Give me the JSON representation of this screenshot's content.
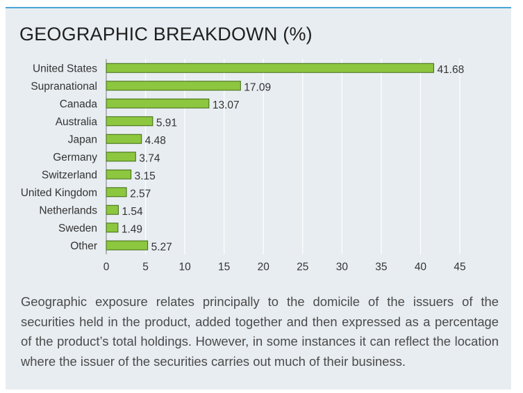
{
  "title": "GEOGRAPHIC BREAKDOWN (%)",
  "description": "Geographic exposure relates principally to the domicile of the issuers of the securities held in the product, added together and then expressed as a percentage of the product’s total holdings. However, in some instances it can reflect the location where the issuer of the securities carries out much of their business.",
  "colors": {
    "bar": "#8dc63f",
    "bar_border": "#3e6b14",
    "panel": "#e8edf1",
    "accent": "#4aa3d6",
    "grid": "#ffffff"
  },
  "chart_data": {
    "type": "bar",
    "orientation": "horizontal",
    "categories": [
      "United States",
      "Supranational",
      "Canada",
      "Australia",
      "Japan",
      "Germany",
      "Switzerland",
      "United Kingdom",
      "Netherlands",
      "Sweden",
      "Other"
    ],
    "values": [
      41.68,
      17.09,
      13.07,
      5.91,
      4.48,
      3.74,
      3.15,
      2.57,
      1.54,
      1.49,
      5.27
    ],
    "value_labels": [
      "41.68",
      "17.09",
      "13.07",
      "5.91",
      "4.48",
      "3.74",
      "3.15",
      "2.57",
      "1.54",
      "1.49",
      "5.27"
    ],
    "x_ticks": [
      "0",
      "5",
      "10",
      "15",
      "20",
      "25",
      "30",
      "35",
      "40",
      "45"
    ],
    "xlim": [
      0,
      45
    ],
    "grid": true
  }
}
